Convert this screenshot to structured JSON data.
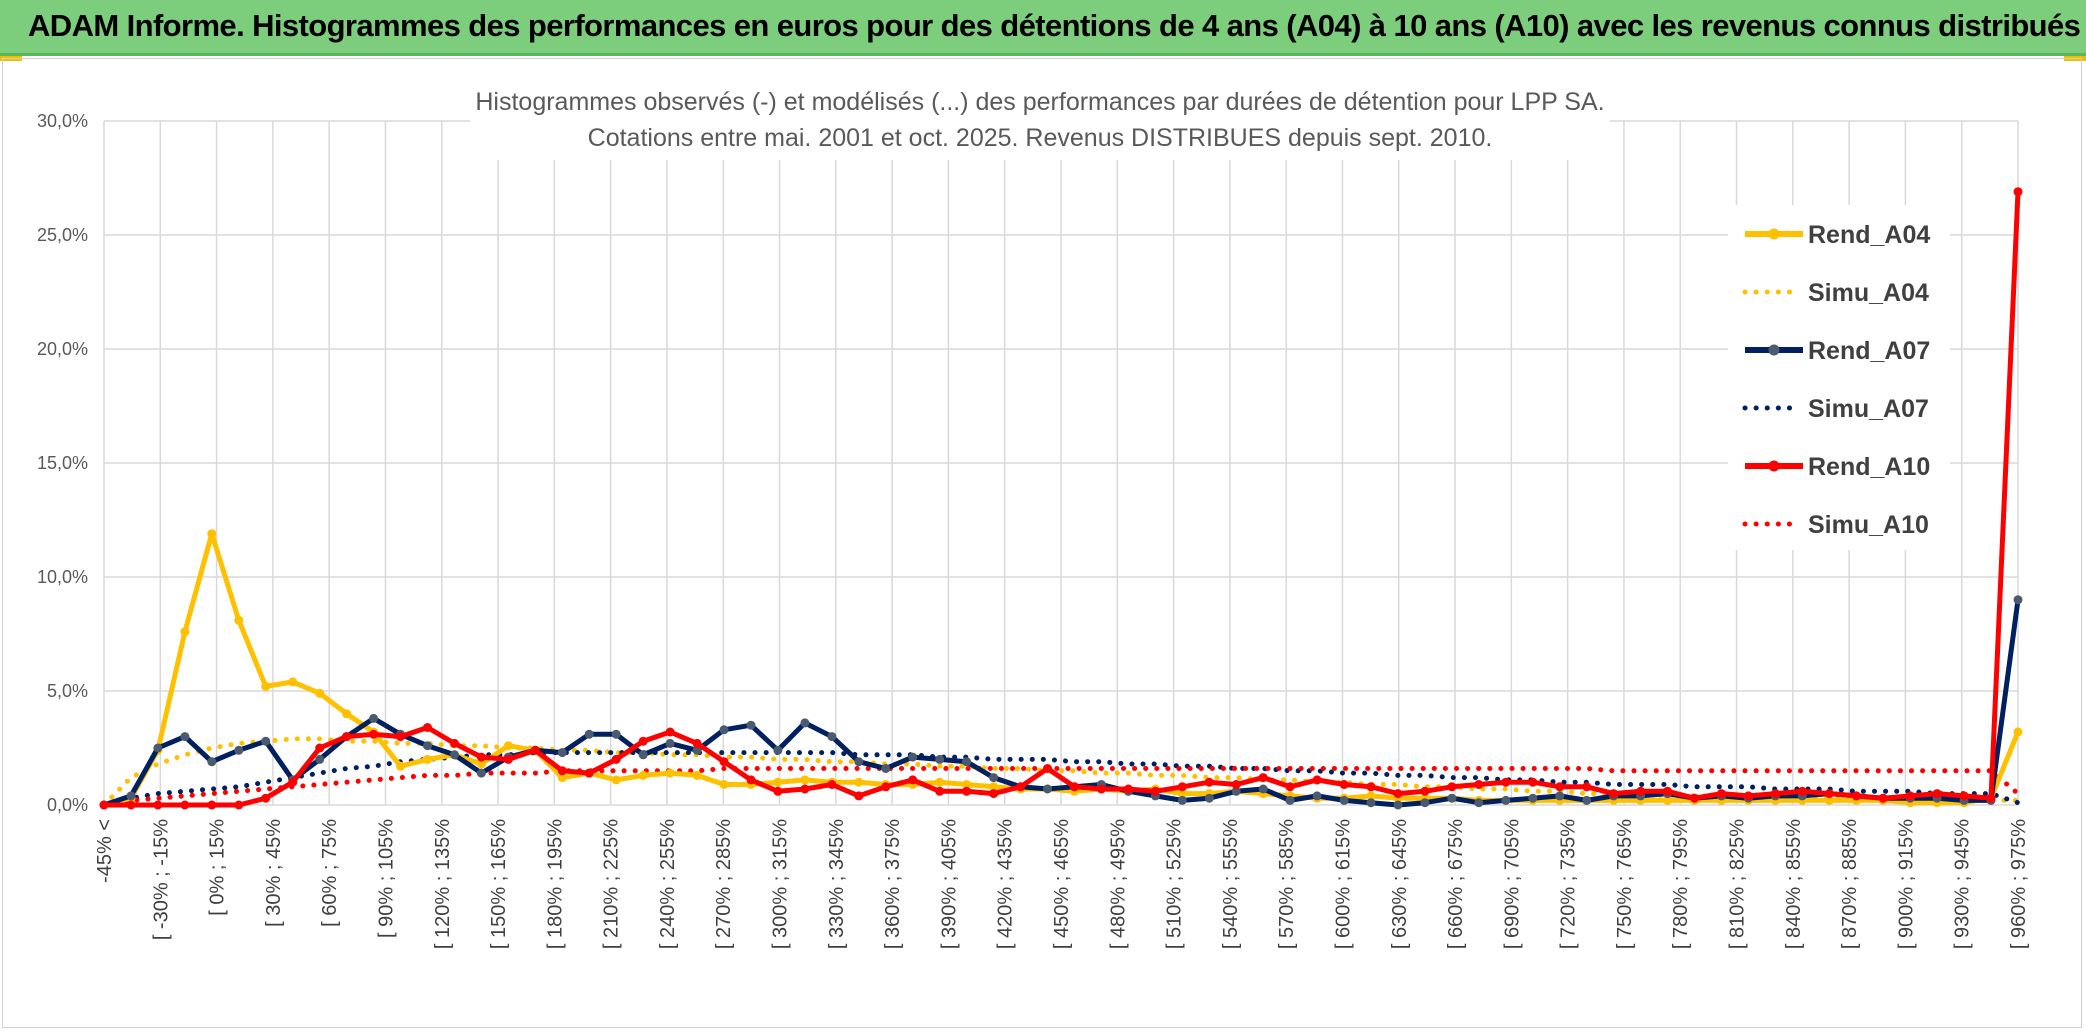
{
  "banner": {
    "title": "ADAM Informe. Histogrammes des performances en euros pour des détentions de 4 ans (A04) à 10 ans (A10) avec les revenus connus distribués"
  },
  "colors": {
    "banner_bg": "#7ccd7c",
    "A04": "#ffc000",
    "A07": "#002060",
    "A07_marker": "#4a5a70",
    "A10": "#ff0000",
    "grid": "#d9d9d9"
  },
  "chart_data": {
    "type": "line",
    "title_lines": [
      "Histogrammes observés (-) et modélisés (...) des performances par durées de détention pour LPP SA.",
      "Cotations entre mai. 2001 et oct. 2025. Revenus DISTRIBUES depuis sept. 2010."
    ],
    "ylim": [
      0,
      30
    ],
    "yticks": [
      "0,0%",
      "5,0%",
      "10,0%",
      "15,0%",
      "20,0%",
      "25,0%",
      "30,0%"
    ],
    "grid": true,
    "legend_position": "right",
    "xtick_labels": [
      "-45% <",
      "[ -30% ; -15%",
      "[ 0% ; 15%",
      "[ 30% ; 45%",
      "[ 60% ; 75%",
      "[ 90% ; 105%",
      "[ 120% ; 135%",
      "[ 150% ; 165%",
      "[ 180% ; 195%",
      "[ 210% ; 225%",
      "[ 240% ; 255%",
      "[ 270% ; 285%",
      "[ 300% ; 315%",
      "[ 330% ; 345%",
      "[ 360% ; 375%",
      "[ 390% ; 405%",
      "[ 420% ; 435%",
      "[ 450% ; 465%",
      "[ 480% ; 495%",
      "[ 510% ; 525%",
      "[ 540% ; 555%",
      "[ 570% ; 585%",
      "[ 600% ; 615%",
      "[ 630% ; 645%",
      "[ 660% ; 675%",
      "[ 690% ; 705%",
      "[ 720% ; 735%",
      "[ 750% ; 765%",
      "[ 780% ; 795%",
      "[ 810% ; 825%",
      "[ 840% ; 855%",
      "[ 870% ; 885%",
      "[ 900% ; 915%",
      "[ 930% ; 945%",
      "[ 960% ; 975%"
    ],
    "series": [
      {
        "name": "Rend_A04",
        "style": "solid",
        "color": "#ffc000",
        "values": [
          0,
          0.3,
          2.4,
          7.6,
          11.9,
          8.1,
          5.2,
          5.4,
          4.9,
          4.0,
          3.2,
          1.7,
          2.0,
          2.2,
          1.8,
          2.6,
          2.4,
          1.2,
          1.4,
          1.1,
          1.3,
          1.4,
          1.3,
          0.9,
          0.9,
          1.0,
          1.1,
          1.0,
          1.0,
          0.9,
          0.9,
          1.0,
          0.9,
          0.8,
          0.7,
          0.7,
          0.6,
          0.7,
          0.6,
          0.7,
          0.5,
          0.5,
          0.6,
          0.5,
          0.4,
          0.3,
          0.3,
          0.4,
          0.3,
          0.3,
          0.3,
          0.2,
          0.2,
          0.2,
          0.2,
          0.2,
          0.2,
          0.2,
          0.2,
          0.2,
          0.2,
          0.2,
          0.2,
          0.2,
          0.2,
          0.2,
          0.2,
          0.1,
          0.1,
          0.1,
          0.3,
          3.2
        ]
      },
      {
        "name": "Simu_A04",
        "style": "dotted",
        "color": "#ffc000",
        "values": [
          0,
          1.2,
          1.8,
          2.2,
          2.5,
          2.7,
          2.8,
          2.9,
          2.9,
          2.8,
          2.8,
          2.7,
          2.7,
          2.6,
          2.6,
          2.5,
          2.5,
          2.4,
          2.4,
          2.3,
          2.3,
          2.2,
          2.2,
          2.1,
          2.1,
          2.0,
          2.0,
          1.9,
          1.9,
          1.8,
          1.8,
          1.7,
          1.7,
          1.6,
          1.6,
          1.5,
          1.5,
          1.4,
          1.4,
          1.3,
          1.3,
          1.2,
          1.2,
          1.1,
          1.1,
          1.0,
          1.0,
          0.9,
          0.9,
          0.8,
          0.8,
          0.7,
          0.7,
          0.6,
          0.6,
          0.5,
          0.5,
          0.5,
          0.4,
          0.4,
          0.4,
          0.3,
          0.3,
          0.3,
          0.3,
          0.2,
          0.2,
          0.2,
          0.2,
          0.2,
          0.2,
          0.2
        ]
      },
      {
        "name": "Rend_A07",
        "style": "solid",
        "color": "#002060",
        "values": [
          0,
          0.4,
          2.5,
          3.0,
          1.9,
          2.4,
          2.8,
          1.1,
          2.0,
          3.0,
          3.8,
          3.1,
          2.6,
          2.2,
          1.4,
          2.1,
          2.4,
          2.3,
          3.1,
          3.1,
          2.2,
          2.7,
          2.4,
          3.3,
          3.5,
          2.4,
          3.6,
          3.0,
          1.9,
          1.6,
          2.1,
          2.0,
          1.9,
          1.2,
          0.8,
          0.7,
          0.8,
          0.9,
          0.6,
          0.4,
          0.2,
          0.3,
          0.6,
          0.7,
          0.2,
          0.4,
          0.2,
          0.1,
          0.0,
          0.1,
          0.3,
          0.1,
          0.2,
          0.3,
          0.4,
          0.2,
          0.4,
          0.4,
          0.5,
          0.3,
          0.4,
          0.3,
          0.4,
          0.4,
          0.5,
          0.4,
          0.3,
          0.3,
          0.3,
          0.2,
          0.2,
          9.0
        ]
      },
      {
        "name": "Simu_A07",
        "style": "dotted",
        "color": "#002060",
        "values": [
          0,
          0.3,
          0.5,
          0.6,
          0.7,
          0.8,
          1.0,
          1.2,
          1.4,
          1.6,
          1.7,
          1.9,
          2.0,
          2.1,
          2.2,
          2.2,
          2.3,
          2.3,
          2.3,
          2.3,
          2.3,
          2.3,
          2.3,
          2.3,
          2.3,
          2.3,
          2.3,
          2.3,
          2.2,
          2.2,
          2.2,
          2.1,
          2.1,
          2.0,
          2.0,
          2.0,
          1.9,
          1.9,
          1.8,
          1.8,
          1.7,
          1.7,
          1.6,
          1.6,
          1.5,
          1.5,
          1.4,
          1.4,
          1.3,
          1.3,
          1.2,
          1.2,
          1.1,
          1.1,
          1.0,
          1.0,
          0.9,
          0.9,
          0.9,
          0.8,
          0.8,
          0.8,
          0.7,
          0.7,
          0.7,
          0.6,
          0.6,
          0.6,
          0.5,
          0.5,
          0.5,
          0.1
        ]
      },
      {
        "name": "Rend_A10",
        "style": "solid",
        "color": "#ff0000",
        "values": [
          0,
          0,
          0,
          0,
          0,
          0,
          0.3,
          1.0,
          2.5,
          3.0,
          3.1,
          3.0,
          3.4,
          2.7,
          2.1,
          2.0,
          2.4,
          1.5,
          1.4,
          2.0,
          2.8,
          3.2,
          2.7,
          1.9,
          1.1,
          0.6,
          0.7,
          0.9,
          0.4,
          0.8,
          1.1,
          0.6,
          0.6,
          0.5,
          0.8,
          1.6,
          0.8,
          0.7,
          0.7,
          0.6,
          0.8,
          1.0,
          0.9,
          1.2,
          0.8,
          1.1,
          0.9,
          0.8,
          0.5,
          0.6,
          0.8,
          0.9,
          1.0,
          1.0,
          0.8,
          0.8,
          0.5,
          0.6,
          0.6,
          0.3,
          0.5,
          0.4,
          0.5,
          0.6,
          0.5,
          0.4,
          0.3,
          0.4,
          0.5,
          0.4,
          0.3,
          26.9
        ]
      },
      {
        "name": "Simu_A10",
        "style": "dotted",
        "color": "#ff0000",
        "values": [
          0,
          0.2,
          0.3,
          0.4,
          0.5,
          0.6,
          0.7,
          0.8,
          0.9,
          1.0,
          1.1,
          1.2,
          1.3,
          1.3,
          1.4,
          1.4,
          1.4,
          1.5,
          1.5,
          1.5,
          1.5,
          1.5,
          1.5,
          1.6,
          1.6,
          1.6,
          1.6,
          1.6,
          1.6,
          1.6,
          1.6,
          1.6,
          1.6,
          1.6,
          1.6,
          1.6,
          1.6,
          1.6,
          1.6,
          1.6,
          1.6,
          1.6,
          1.6,
          1.6,
          1.6,
          1.6,
          1.6,
          1.6,
          1.6,
          1.6,
          1.6,
          1.6,
          1.6,
          1.6,
          1.6,
          1.6,
          1.5,
          1.5,
          1.5,
          1.5,
          1.5,
          1.5,
          1.5,
          1.5,
          1.5,
          1.5,
          1.5,
          1.5,
          1.5,
          1.5,
          1.5,
          0.5
        ]
      }
    ]
  }
}
